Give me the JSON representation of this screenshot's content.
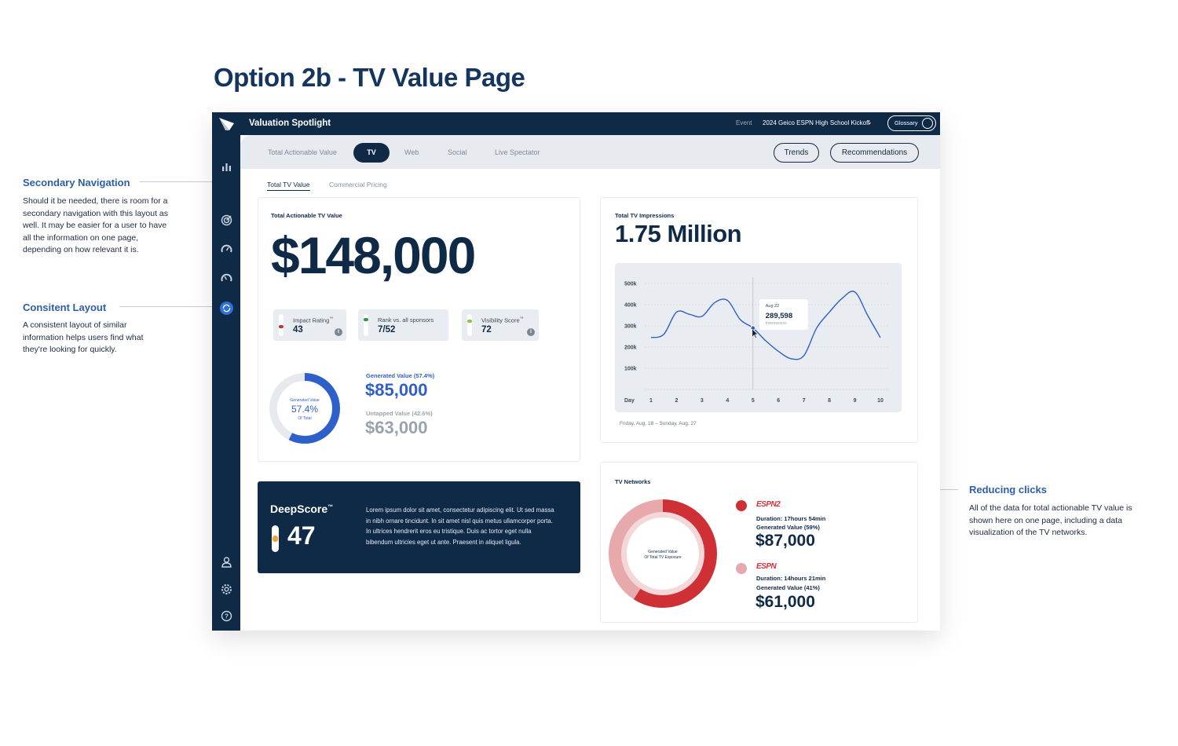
{
  "page_title": "Option 2b - TV Value Page",
  "annotations": {
    "secondary_nav": {
      "title": "Secondary Navigation",
      "lines": [
        "Should it be needed, there is room for a",
        "secondary navigation with this layout as",
        "well. It may be easier for a user to have",
        "all the information on one page,",
        "depending on how relevant it is."
      ]
    },
    "consistent_layout": {
      "title": "Consitent Layout",
      "lines": [
        "A consistent layout of similar",
        "information helps users find what",
        "they're looking for quickly."
      ]
    },
    "reducing_clicks": {
      "title": "Reducing clicks",
      "lines": [
        "All of the data for total actionable TV value is",
        "shown here on one page, including a data",
        "visualization of the TV networks."
      ]
    }
  },
  "topbar": {
    "app_title": "Valuation Spotlight",
    "event_label": "Event",
    "event_value": "2024 Geico ESPN High School Kickoff",
    "glossary_label": "Glossary"
  },
  "sidebar_icons": [
    "bar-chart-icon",
    "target-icon",
    "gauge-icon",
    "gauge-icon",
    "refresh-icon",
    "user-icon",
    "gear-icon",
    "help-icon"
  ],
  "tabs": {
    "items": [
      "Total Actionable Value",
      "TV",
      "Web",
      "Social",
      "Live Spectator"
    ],
    "active": "TV",
    "trends": "Trends",
    "recommendations": "Recommendations"
  },
  "subtabs": [
    "Total TV Value",
    "Commercial Pricing"
  ],
  "tv_value": {
    "label": "Total Actionable TV Value",
    "value": "$148,000",
    "metrics": [
      {
        "label": "Impact Rating",
        "tm": "™",
        "value": "43",
        "color": "#c8342f",
        "level": 0.4
      },
      {
        "label": "Rank vs. all sponsors",
        "value": "7/52",
        "color": "#2f9b3a",
        "level": 0.8
      },
      {
        "label": "Visibility Score",
        "tm": "™",
        "value": "72",
        "color": "#8cc63f",
        "level": 0.72
      }
    ],
    "donut": {
      "title": "Generated Value",
      "percent": "57.4%",
      "sub": "Of Total",
      "fraction": 0.574
    },
    "generated_label": "Generated Value (57.4%)",
    "generated_value": "$85,000",
    "untapped_label": "Untapped Value (42.6%)",
    "untapped_value": "$63,000"
  },
  "deepscore": {
    "title": "DeepScore",
    "tm": "™",
    "value": "47",
    "text": "Lorem ipsum dolor sit amet, consectetur adipiscing elit. Ut sed massa in nibh ornare tincidunt. In sit amet nisl quis metus ullamcorper porta. In ultrices hendrerit eros eu tristique. Duis ac tortor eget nulla bibendum ultricies eget ut ante. Praesent in aliquet ligula."
  },
  "impressions": {
    "label": "Total TV Impressions",
    "value": "1.75 Million",
    "date_range": "Friday, Aug. 18 – Sunday, Aug. 27",
    "tooltip": {
      "date": "Aug 22",
      "value": "289,598",
      "unit": "Impressions"
    }
  },
  "chart_data": {
    "type": "line",
    "xlabel": "Day",
    "ylabel": "",
    "x": [
      1,
      1.5,
      2,
      2.5,
      3,
      3.5,
      4,
      4.5,
      5,
      5.5,
      6,
      6.5,
      7,
      7.5,
      8,
      8.5,
      9,
      9.5,
      10
    ],
    "x_ticks": [
      "1",
      "2",
      "3",
      "4",
      "5",
      "6",
      "7",
      "8",
      "9",
      "10"
    ],
    "y_ticks": [
      "500k",
      "400k",
      "300k",
      "200k",
      "100k"
    ],
    "ylim": [
      0,
      500000
    ],
    "series": [
      {
        "values": [
          245000,
          260000,
          365000,
          355000,
          345000,
          410000,
          420000,
          330000,
          290000,
          230000,
          180000,
          145000,
          160000,
          290000,
          365000,
          430000,
          460000,
          350000,
          245000
        ]
      }
    ],
    "highlight_x": 5,
    "grid": true
  },
  "networks": {
    "label": "TV Networks",
    "donut_title": "Generated Value",
    "donut_sub": "Of Total TV Exposure",
    "items": [
      {
        "logo": "ESPN2",
        "duration": "Duration: 17hours 54min",
        "generated": "Generated Value (59%)",
        "value": "$87,000",
        "color": "#cf3036",
        "fraction": 0.59
      },
      {
        "logo": "ESPN",
        "duration": "Duration: 14hours 21min",
        "generated": "Generated Value (41%)",
        "value": "$61,000",
        "color": "#e7a9ab",
        "fraction": 0.41
      }
    ]
  },
  "colors": {
    "navy": "#0f2a47",
    "blue": "#2f5fc8",
    "gray_value": "#9aa3ad",
    "espn_red": "#cf3036",
    "espn_pink": "#e7a9ab"
  }
}
